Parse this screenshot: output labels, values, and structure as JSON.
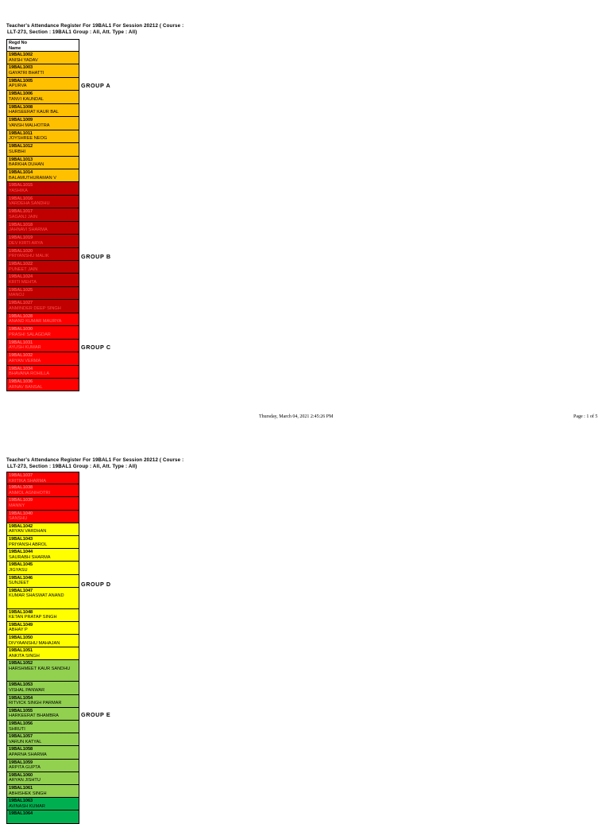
{
  "colors": {
    "group_a": "#ffc000",
    "group_b": "#c00000",
    "group_c": "#ff0000",
    "group_d": "#ffff00",
    "group_e": "#92d050",
    "group_f": "#00b050"
  },
  "page1": {
    "header_line1": "Teacher's Attendance Register For 19BAL1 For Session 20212 ( Course :",
    "header_line2": "LLT-273, Section : 19BAL1 Group : All, Att. Type : All)",
    "col_regd": "Regd No",
    "col_name": "Name",
    "groups": {
      "a": "GROUP A",
      "b": "GROUP B",
      "c": "GROUP C"
    },
    "footer_date": "Thursday, March 04, 2021 2:45:26 PM",
    "footer_page": "Page : 1 of 5",
    "students": [
      {
        "reg": "19BAL1002",
        "name": "ANISH YADAV",
        "group": "a"
      },
      {
        "reg": "19BAL1003",
        "name": "GAYATRI BHATTI",
        "group": "a"
      },
      {
        "reg": "19BAL1005",
        "name": "APURVA",
        "group": "a"
      },
      {
        "reg": "19BAL1006",
        "name": "TANVI KAUNDAL",
        "group": "a"
      },
      {
        "reg": "19BAL1008",
        "name": "HARSEERAT KAUR BAL",
        "group": "a"
      },
      {
        "reg": "19BAL1009",
        "name": "VANSH MALHOTRA",
        "group": "a"
      },
      {
        "reg": "19BAL1011",
        "name": "JOYSHREE NEOG",
        "group": "a"
      },
      {
        "reg": "19BAL1012",
        "name": "SURBHI",
        "group": "a"
      },
      {
        "reg": "19BAL1013",
        "name": "BARKHA DUHAN",
        "group": "a"
      },
      {
        "reg": "19BAL1014",
        "name": "BALAMUTHURAMAN V",
        "group": "a"
      },
      {
        "reg": "19BAL1015",
        "name": "YASHIKA",
        "group": "b"
      },
      {
        "reg": "19BAL1016",
        "name": "VARDEHA SANDHU",
        "group": "b"
      },
      {
        "reg": "19BAL1017",
        "name": "SAGANJ JAIN",
        "group": "b"
      },
      {
        "reg": "19BAL1018",
        "name": "JAHNAVI SHARMA",
        "group": "b"
      },
      {
        "reg": "19BAL1019",
        "name": "DEV KIRTI ARYA",
        "group": "b"
      },
      {
        "reg": "19BAL1020",
        "name": "PRIYANSHU MALIK",
        "group": "b"
      },
      {
        "reg": "19BAL1022",
        "name": "PUNEET JAIN",
        "group": "b"
      },
      {
        "reg": "19BAL1024",
        "name": "KRITI MEHTA",
        "group": "b"
      },
      {
        "reg": "19BAL1025",
        "name": "MANOJ",
        "group": "b"
      },
      {
        "reg": "19BAL1027",
        "name": "ANMINDER DEEP SINGH",
        "group": "b"
      },
      {
        "reg": "19BAL1028",
        "name": "ANAND KUMAR MAURYA",
        "group": "c"
      },
      {
        "reg": "19BAL1030",
        "name": "PRASHI SALAGDAR",
        "group": "c"
      },
      {
        "reg": "19BAL1031",
        "name": "AYUSH KUMAR",
        "group": "c"
      },
      {
        "reg": "19BAL1032",
        "name": "ARYAN VERMA",
        "group": "c"
      },
      {
        "reg": "19BAL1034",
        "name": "BHAVANA ROHILLA",
        "group": "c"
      },
      {
        "reg": "19BAL1036",
        "name": "ARNAV BANSAL",
        "group": "c"
      }
    ]
  },
  "page2": {
    "header_line1": "Teacher's Attendance Register For 19BAL1 For Session 20212 ( Course :",
    "header_line2": "LLT-273, Section : 19BAL1 Group : All, Att. Type : All)",
    "groups": {
      "d": "GROUP D",
      "e": "GROUP E"
    },
    "students": [
      {
        "reg": "19BAL1037",
        "name": "KRITIKA SHARMA",
        "group": "c"
      },
      {
        "reg": "19BAL1038",
        "name": "ANMOL AGNIHOTRI",
        "group": "c"
      },
      {
        "reg": "19BAL1039",
        "name": "MANNY",
        "group": "c"
      },
      {
        "reg": "19BAL1040",
        "name": "SANSHU",
        "group": "c"
      },
      {
        "reg": "19BAL1042",
        "name": "ARYAN VARDHAN",
        "group": "d"
      },
      {
        "reg": "19BAL1043",
        "name": "PRIYANSH ABROL",
        "group": "d"
      },
      {
        "reg": "19BAL1044",
        "name": "SAURABH SHARMA",
        "group": "d"
      },
      {
        "reg": "19BAL1045",
        "name": "JIGYASU",
        "group": "d"
      },
      {
        "reg": "19BAL1046",
        "name": "SUNJEET",
        "group": "d"
      },
      {
        "reg": "19BAL1047",
        "name": "KUMAR SHASWAT ANAND",
        "group": "d",
        "tall": true
      },
      {
        "reg": "19BAL1048",
        "name": "KETAN PRATAP SINGH",
        "group": "d"
      },
      {
        "reg": "19BAL1049",
        "name": "ABHAY P",
        "group": "d"
      },
      {
        "reg": "19BAL1050",
        "name": "DIVYAANSHU MAHAJAN",
        "group": "d"
      },
      {
        "reg": "19BAL1051",
        "name": "ANKITA SINGH",
        "group": "d"
      },
      {
        "reg": "19BAL1052",
        "name": "HARSHMEET KAUR SANDHU",
        "group": "e",
        "tall": true
      },
      {
        "reg": "19BAL1053",
        "name": "VISHAL PANWAR",
        "group": "e"
      },
      {
        "reg": "19BAL1054",
        "name": "RITVICK SINGH PARMAR",
        "group": "e"
      },
      {
        "reg": "19BAL1055",
        "name": "HARKEERAT BHAMBRA",
        "group": "e"
      },
      {
        "reg": "19BAL1056",
        "name": "SHRUTI",
        "group": "e"
      },
      {
        "reg": "19BAL1057",
        "name": "VARUN KATYAL",
        "group": "e"
      },
      {
        "reg": "19BAL1058",
        "name": "APARNA SHARMA",
        "group": "e"
      },
      {
        "reg": "19BAL1059",
        "name": "ARPITA GUPTA",
        "group": "e"
      },
      {
        "reg": "19BAL1060",
        "name": "ARYAN JISHTU",
        "group": "e"
      },
      {
        "reg": "19BAL1061",
        "name": "ABHISHEK SINGH",
        "group": "e"
      },
      {
        "reg": "19BAL1063",
        "name": "AVINASH KUMAR",
        "group": "f"
      },
      {
        "reg": "19BAL1064",
        "name": "",
        "group": "f"
      }
    ]
  }
}
